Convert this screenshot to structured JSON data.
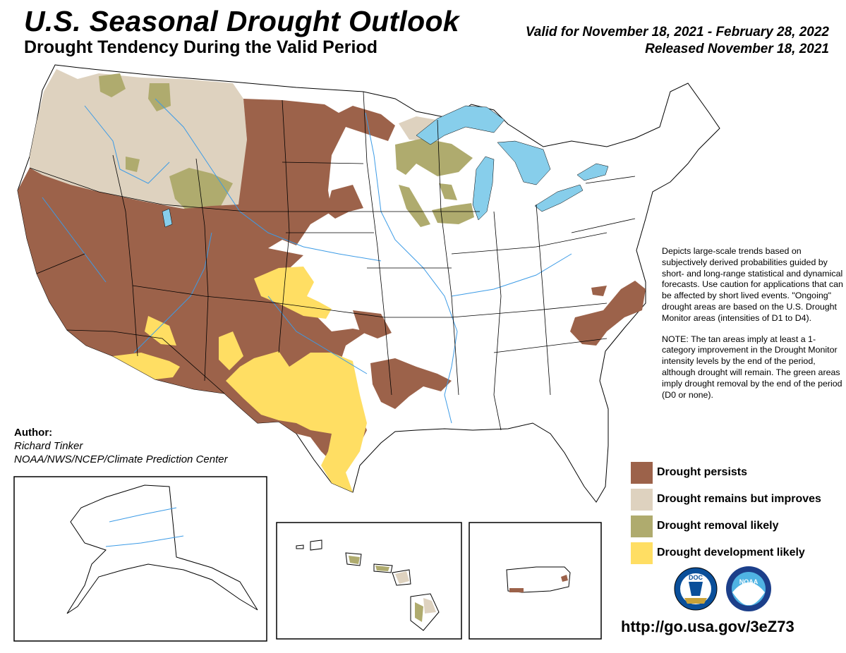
{
  "header": {
    "title": "U.S. Seasonal Drought Outlook",
    "subtitle": "Drought Tendency During the Valid Period",
    "valid_period": "Valid for November 18, 2021 - February 28, 2022",
    "released": "Released November 18, 2021"
  },
  "description": {
    "paragraph_1": "Depicts large-scale trends based on subjectively derived probabilities guided by short- and long-range statistical and dynamical forecasts. Use caution for applications that can be affected by short lived events. \"Ongoing\" drought areas are based on the U.S. Drought Monitor areas (intensities of D1 to D4).",
    "paragraph_2": "NOTE: The tan areas imply at least a 1-category improvement in the Drought Monitor intensity levels by the end of the period, although drought will remain. The green areas imply drought removal by the end of the period (D0 or none)."
  },
  "legend": {
    "items": [
      {
        "label": "Drought persists",
        "color": "#9C624A"
      },
      {
        "label": "Drought remains but improves",
        "color": "#DED2BF"
      },
      {
        "label": "Drought removal likely",
        "color": "#AFAB6E"
      },
      {
        "label": "Drought development likely",
        "color": "#FFDE63"
      }
    ]
  },
  "author": {
    "label": "Author:",
    "name": "Richard Tinker",
    "organization": "NOAA/NWS/NCEP/Climate Prediction Center"
  },
  "url": "http://go.usa.gov/3eZ73",
  "colors": {
    "persists": "#9C624A",
    "improves": "#DED2BF",
    "removal": "#AFAB6E",
    "development": "#FFDE63",
    "water": "#87CEEB",
    "river": "#3C9BE6",
    "land": "#FFFFFF",
    "border": "#000000"
  },
  "logos": {
    "doc": "DOC",
    "noaa": "NOAA"
  }
}
